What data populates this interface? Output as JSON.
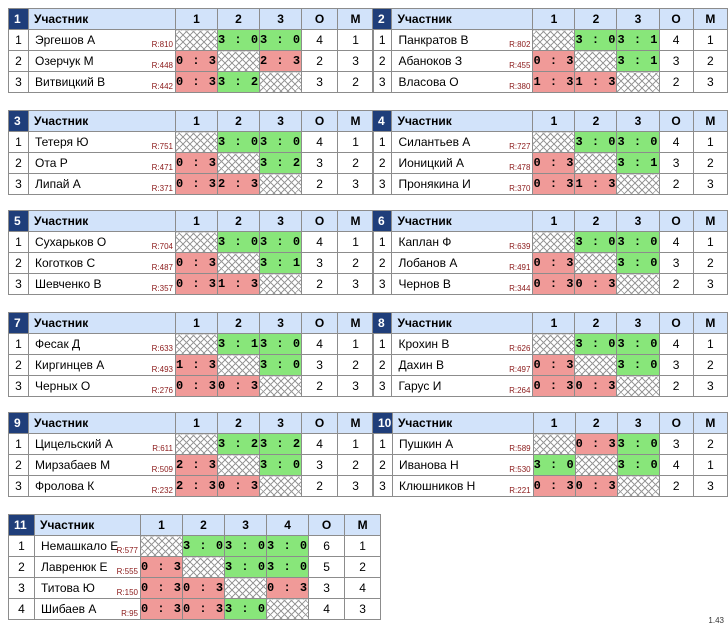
{
  "header": {
    "participant": "Участник",
    "points": "О",
    "place": "М"
  },
  "groups": [
    {
      "number": "1",
      "cols": [
        "1",
        "2",
        "3"
      ],
      "rows": [
        {
          "idx": "1",
          "name": "Эргешов А",
          "rating": "R:810",
          "cells": [
            "",
            "3 : 0",
            "3 : 0"
          ],
          "o": "4",
          "m": "1"
        },
        {
          "idx": "2",
          "name": "Озерчук М",
          "rating": "R:448",
          "cells": [
            "0 : 3",
            "",
            "2 : 3"
          ],
          "o": "2",
          "m": "3"
        },
        {
          "idx": "3",
          "name": "Витвицкий В",
          "rating": "R:442",
          "cells": [
            "0 : 3",
            "3 : 2",
            ""
          ],
          "o": "3",
          "m": "2"
        }
      ]
    },
    {
      "number": "2",
      "cols": [
        "1",
        "2",
        "3"
      ],
      "rows": [
        {
          "idx": "1",
          "name": "Панкратов В",
          "rating": "R:802",
          "cells": [
            "",
            "3 : 0",
            "3 : 1"
          ],
          "o": "4",
          "m": "1"
        },
        {
          "idx": "2",
          "name": "Абаноков З",
          "rating": "R:455",
          "cells": [
            "0 : 3",
            "",
            "3 : 1"
          ],
          "o": "3",
          "m": "2"
        },
        {
          "idx": "3",
          "name": "Власова О",
          "rating": "R:380",
          "cells": [
            "1 : 3",
            "1 : 3",
            ""
          ],
          "o": "2",
          "m": "3"
        }
      ]
    },
    {
      "number": "3",
      "cols": [
        "1",
        "2",
        "3"
      ],
      "rows": [
        {
          "idx": "1",
          "name": "Тетеря Ю",
          "rating": "R:751",
          "cells": [
            "",
            "3 : 0",
            "3 : 0"
          ],
          "o": "4",
          "m": "1"
        },
        {
          "idx": "2",
          "name": "Ота Р",
          "rating": "R:471",
          "cells": [
            "0 : 3",
            "",
            "3 : 2"
          ],
          "o": "3",
          "m": "2"
        },
        {
          "idx": "3",
          "name": "Липай А",
          "rating": "R:371",
          "cells": [
            "0 : 3",
            "2 : 3",
            ""
          ],
          "o": "2",
          "m": "3"
        }
      ]
    },
    {
      "number": "4",
      "cols": [
        "1",
        "2",
        "3"
      ],
      "rows": [
        {
          "idx": "1",
          "name": "Силантьев А",
          "rating": "R:727",
          "cells": [
            "",
            "3 : 0",
            "3 : 0"
          ],
          "o": "4",
          "m": "1"
        },
        {
          "idx": "2",
          "name": "Ионицкий А",
          "rating": "R:478",
          "cells": [
            "0 : 3",
            "",
            "3 : 1"
          ],
          "o": "3",
          "m": "2"
        },
        {
          "idx": "3",
          "name": "Пронякина И",
          "rating": "R:370",
          "cells": [
            "0 : 3",
            "1 : 3",
            ""
          ],
          "o": "2",
          "m": "3"
        }
      ]
    },
    {
      "number": "5",
      "cols": [
        "1",
        "2",
        "3"
      ],
      "rows": [
        {
          "idx": "1",
          "name": "Сухарьков О",
          "rating": "R:704",
          "cells": [
            "",
            "3 : 0",
            "3 : 0"
          ],
          "o": "4",
          "m": "1"
        },
        {
          "idx": "2",
          "name": "Коготков С",
          "rating": "R:487",
          "cells": [
            "0 : 3",
            "",
            "3 : 1"
          ],
          "o": "3",
          "m": "2"
        },
        {
          "idx": "3",
          "name": "Шевченко В",
          "rating": "R:357",
          "cells": [
            "0 : 3",
            "1 : 3",
            ""
          ],
          "o": "2",
          "m": "3"
        }
      ]
    },
    {
      "number": "6",
      "cols": [
        "1",
        "2",
        "3"
      ],
      "rows": [
        {
          "idx": "1",
          "name": "Каплан Ф",
          "rating": "R:639",
          "cells": [
            "",
            "3 : 0",
            "3 : 0"
          ],
          "o": "4",
          "m": "1"
        },
        {
          "idx": "2",
          "name": "Лобанов А",
          "rating": "R:491",
          "cells": [
            "0 : 3",
            "",
            "3 : 0"
          ],
          "o": "3",
          "m": "2"
        },
        {
          "idx": "3",
          "name": "Чернов В",
          "rating": "R:344",
          "cells": [
            "0 : 3",
            "0 : 3",
            ""
          ],
          "o": "2",
          "m": "3"
        }
      ]
    },
    {
      "number": "7",
      "cols": [
        "1",
        "2",
        "3"
      ],
      "rows": [
        {
          "idx": "1",
          "name": "Фесак Д",
          "rating": "R:633",
          "cells": [
            "",
            "3 : 1",
            "3 : 0"
          ],
          "o": "4",
          "m": "1"
        },
        {
          "idx": "2",
          "name": "Киргинцев А",
          "rating": "R:493",
          "cells": [
            "1 : 3",
            "",
            "3 : 0"
          ],
          "o": "3",
          "m": "2"
        },
        {
          "idx": "3",
          "name": "Черных О",
          "rating": "R:276",
          "cells": [
            "0 : 3",
            "0 : 3",
            ""
          ],
          "o": "2",
          "m": "3"
        }
      ]
    },
    {
      "number": "8",
      "cols": [
        "1",
        "2",
        "3"
      ],
      "rows": [
        {
          "idx": "1",
          "name": "Крохин В",
          "rating": "R:626",
          "cells": [
            "",
            "3 : 0",
            "3 : 0"
          ],
          "o": "4",
          "m": "1"
        },
        {
          "idx": "2",
          "name": "Дахин В",
          "rating": "R:497",
          "cells": [
            "0 : 3",
            "",
            "3 : 0"
          ],
          "o": "3",
          "m": "2"
        },
        {
          "idx": "3",
          "name": "Гарус И",
          "rating": "R:264",
          "cells": [
            "0 : 3",
            "0 : 3",
            ""
          ],
          "o": "2",
          "m": "3"
        }
      ]
    },
    {
      "number": "9",
      "cols": [
        "1",
        "2",
        "3"
      ],
      "rows": [
        {
          "idx": "1",
          "name": "Цицельский А",
          "rating": "R:611",
          "cells": [
            "",
            "3 : 2",
            "3 : 2"
          ],
          "o": "4",
          "m": "1"
        },
        {
          "idx": "2",
          "name": "Мирзабаев М",
          "rating": "R:509",
          "cells": [
            "2 : 3",
            "",
            "3 : 0"
          ],
          "o": "3",
          "m": "2"
        },
        {
          "idx": "3",
          "name": "Фролова К",
          "rating": "R:232",
          "cells": [
            "2 : 3",
            "0 : 3",
            ""
          ],
          "o": "2",
          "m": "3"
        }
      ]
    },
    {
      "number": "10",
      "cols": [
        "1",
        "2",
        "3"
      ],
      "rows": [
        {
          "idx": "1",
          "name": "Пушкин А",
          "rating": "R:589",
          "cells": [
            "",
            "0 : 3",
            "3 : 0"
          ],
          "o": "3",
          "m": "2"
        },
        {
          "idx": "2",
          "name": "Иванова Н",
          "rating": "R:530",
          "cells": [
            "3 : 0",
            "",
            "3 : 0"
          ],
          "o": "4",
          "m": "1"
        },
        {
          "idx": "3",
          "name": "Клюшников Н",
          "rating": "R:221",
          "cells": [
            "0 : 3",
            "0 : 3",
            ""
          ],
          "o": "2",
          "m": "3"
        }
      ]
    },
    {
      "number": "11",
      "cols": [
        "1",
        "2",
        "3",
        "4"
      ],
      "rows": [
        {
          "idx": "1",
          "name": "Немашкало Е",
          "rating": "R:577",
          "cells": [
            "",
            "3 : 0",
            "3 : 0",
            "3 : 0"
          ],
          "o": "6",
          "m": "1"
        },
        {
          "idx": "2",
          "name": "Лавренюк Е",
          "rating": "R:555",
          "cells": [
            "0 : 3",
            "",
            "3 : 0",
            "3 : 0"
          ],
          "o": "5",
          "m": "2"
        },
        {
          "idx": "3",
          "name": "Титова Ю",
          "rating": "R:150",
          "cells": [
            "0 : 3",
            "0 : 3",
            "",
            "0 : 3"
          ],
          "o": "3",
          "m": "4"
        },
        {
          "idx": "4",
          "name": "Шибаев А",
          "rating": "R:95",
          "cells": [
            "0 : 3",
            "0 : 3",
            "3 : 0",
            ""
          ],
          "o": "4",
          "m": "3"
        }
      ]
    }
  ],
  "version": "1.43",
  "colors": {
    "header_bg": "#d2e3fa",
    "group_number_bg": "#1f3e7a",
    "win": "#88e67a",
    "loss": "#f09a98"
  }
}
